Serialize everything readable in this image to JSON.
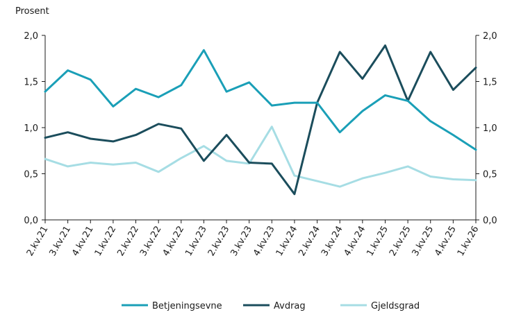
{
  "chart_data": {
    "type": "line",
    "title": "",
    "ylabel": "Prosent",
    "xlabel": "",
    "ylim": [
      0,
      2.0
    ],
    "yticks": [
      0,
      0.5,
      1.0,
      1.5,
      2.0
    ],
    "ytick_labels": [
      "0,0",
      "0,5",
      "1,0",
      "1,5",
      "2,0"
    ],
    "secondary_axis": true,
    "grid": false,
    "legend_position": "bottom",
    "categories": [
      "2.kv.21",
      "3.kv.21",
      "4.kv.21",
      "1.kv.22",
      "2.kv.22",
      "3.kv.22",
      "4.kv.22",
      "1.kv.23",
      "2.kv.23",
      "3.kv.23",
      "4.kv.23",
      "1.kv.24",
      "2.kv.24",
      "3.kv.24",
      "4.kv.24",
      "1.kv.25",
      "2.kv.25",
      "3.kv.25",
      "4.kv.25",
      "1.kv.26"
    ],
    "series": [
      {
        "name": "Betjeningsevne",
        "color": "#1a9fb7",
        "values": [
          1.39,
          1.62,
          1.52,
          1.23,
          1.42,
          1.33,
          1.46,
          1.84,
          1.39,
          1.49,
          1.24,
          1.27,
          1.27,
          0.95,
          1.18,
          1.35,
          1.29,
          1.07,
          0.92,
          0.76
        ]
      },
      {
        "name": "Avdrag",
        "color": "#1b4d5c",
        "values": [
          0.89,
          0.95,
          0.88,
          0.85,
          0.92,
          1.04,
          0.99,
          0.64,
          0.92,
          0.62,
          0.61,
          0.28,
          1.27,
          1.82,
          1.53,
          1.89,
          1.29,
          1.82,
          1.41,
          1.65
        ]
      },
      {
        "name": "Gjeldsgrad",
        "color": "#a6dde4",
        "values": [
          0.66,
          0.58,
          0.62,
          0.6,
          0.62,
          0.52,
          0.67,
          0.8,
          0.64,
          0.61,
          1.01,
          0.48,
          0.42,
          0.36,
          0.45,
          0.51,
          0.58,
          0.47,
          0.44,
          0.43
        ]
      }
    ]
  }
}
